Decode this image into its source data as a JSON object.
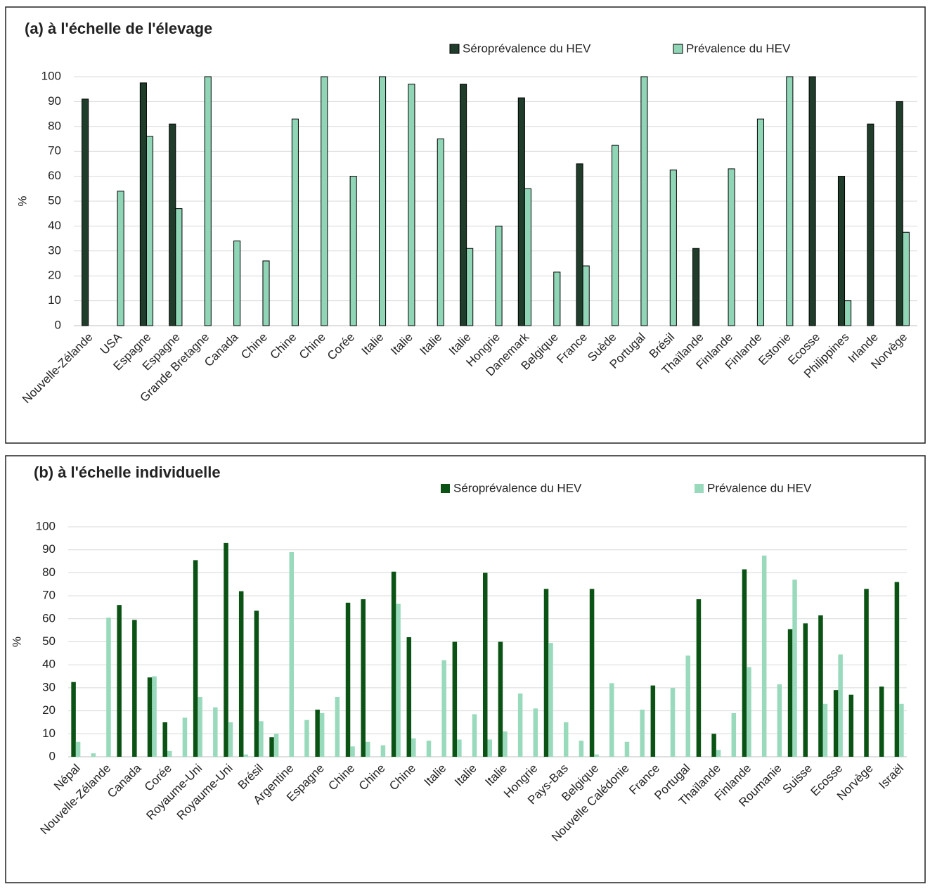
{
  "chart_data": [
    {
      "type": "bar",
      "title": "(a) à l'échelle de l'élevage",
      "y_label": "%",
      "categories": [
        "Nouvelle-Zélande",
        "USA",
        "Espagne",
        "Espagne",
        "Grande Bretagne",
        "Canada",
        "Chine",
        "Chine",
        "Chine",
        "Corée",
        "Italie",
        "Italie",
        "Italie",
        "Italie",
        "Hongrie",
        "Danemark",
        "Belgique",
        "France",
        "Suède",
        "Portugal",
        "Brésil",
        "Thaïlande",
        "Finlande",
        "Finlande",
        "Estonie",
        "Ecosse",
        "Philippines",
        "Irlande",
        "Norvège"
      ],
      "series": [
        {
          "name": "Séroprévalence du HEV",
          "color": "#1f3d2a",
          "values": [
            91,
            null,
            97.5,
            81,
            null,
            null,
            null,
            null,
            null,
            null,
            null,
            null,
            null,
            97,
            null,
            91.5,
            null,
            65,
            null,
            null,
            null,
            31,
            null,
            null,
            null,
            100,
            60,
            81,
            90
          ]
        },
        {
          "name": "Prévalence du HEV",
          "color": "#8fd5b6",
          "values": [
            null,
            54,
            76,
            47,
            100,
            34,
            26,
            83,
            100,
            60,
            100,
            97,
            75,
            31,
            40,
            55,
            21.5,
            24,
            72.5,
            100,
            62.5,
            null,
            63,
            83,
            100,
            null,
            10,
            null,
            37.5
          ]
        }
      ],
      "ylim": [
        0,
        100
      ],
      "yticks": [
        0,
        10,
        20,
        30,
        40,
        50,
        60,
        70,
        80,
        90,
        100
      ],
      "grid": true
    },
    {
      "type": "bar",
      "title": "(b) à l'échelle individuelle",
      "y_label": "%",
      "categories": [
        "Népal",
        null,
        "Nouvelle-Zélande",
        null,
        "Canada",
        null,
        "Corée",
        null,
        "Royaume-Uni",
        null,
        "Royaume-Uni",
        null,
        "Brésil",
        null,
        "Argentine",
        null,
        "Espagne",
        null,
        "Chine",
        null,
        "Chine",
        null,
        "Chine",
        null,
        "Italie",
        null,
        "Italie",
        null,
        "Italie",
        null,
        "Hongrie",
        null,
        "Pays-Bas",
        null,
        "Belgique",
        null,
        "Nouvelle Calédonie",
        null,
        "France",
        null,
        "Portugal",
        null,
        "Thaïlande",
        null,
        "Finlande",
        null,
        "Roumanie",
        null,
        "Suisse",
        null,
        "Ecosse",
        null,
        "Norvège",
        null,
        "Israël"
      ],
      "series": [
        {
          "name": "Séroprévalence du HEV",
          "color": "#0b5314",
          "values": [
            32.5,
            null,
            null,
            66,
            59.5,
            34.5,
            15,
            null,
            85.5,
            null,
            93,
            72,
            63.5,
            8.5,
            null,
            null,
            20.5,
            null,
            67,
            68.5,
            null,
            80.5,
            52,
            null,
            null,
            50,
            null,
            80,
            50,
            null,
            null,
            73,
            null,
            null,
            73,
            null,
            null,
            null,
            31,
            null,
            null,
            68.5,
            10,
            null,
            81.5,
            null,
            null,
            55.5,
            58,
            61.5,
            29,
            27,
            73,
            30.5,
            76
          ]
        },
        {
          "name": "Prévalence du HEV",
          "color": "#9adabc",
          "values": [
            6.5,
            1.5,
            60.5,
            null,
            null,
            35,
            2.5,
            17,
            26,
            21.5,
            15,
            1,
            15.5,
            10,
            89,
            16,
            19,
            26,
            4.5,
            6.5,
            5,
            66.5,
            8,
            7,
            42,
            7.5,
            18.5,
            7.5,
            11,
            27.5,
            21,
            49.5,
            15,
            7,
            1,
            32,
            6.5,
            20.5,
            null,
            30,
            44,
            null,
            3,
            19,
            39,
            87.5,
            31.5,
            77,
            null,
            23,
            44.5,
            null,
            null,
            null,
            23
          ]
        }
      ],
      "ylim": [
        0,
        100
      ],
      "yticks": [
        0,
        10,
        20,
        30,
        40,
        50,
        60,
        70,
        80,
        90,
        100
      ],
      "grid": true
    }
  ]
}
